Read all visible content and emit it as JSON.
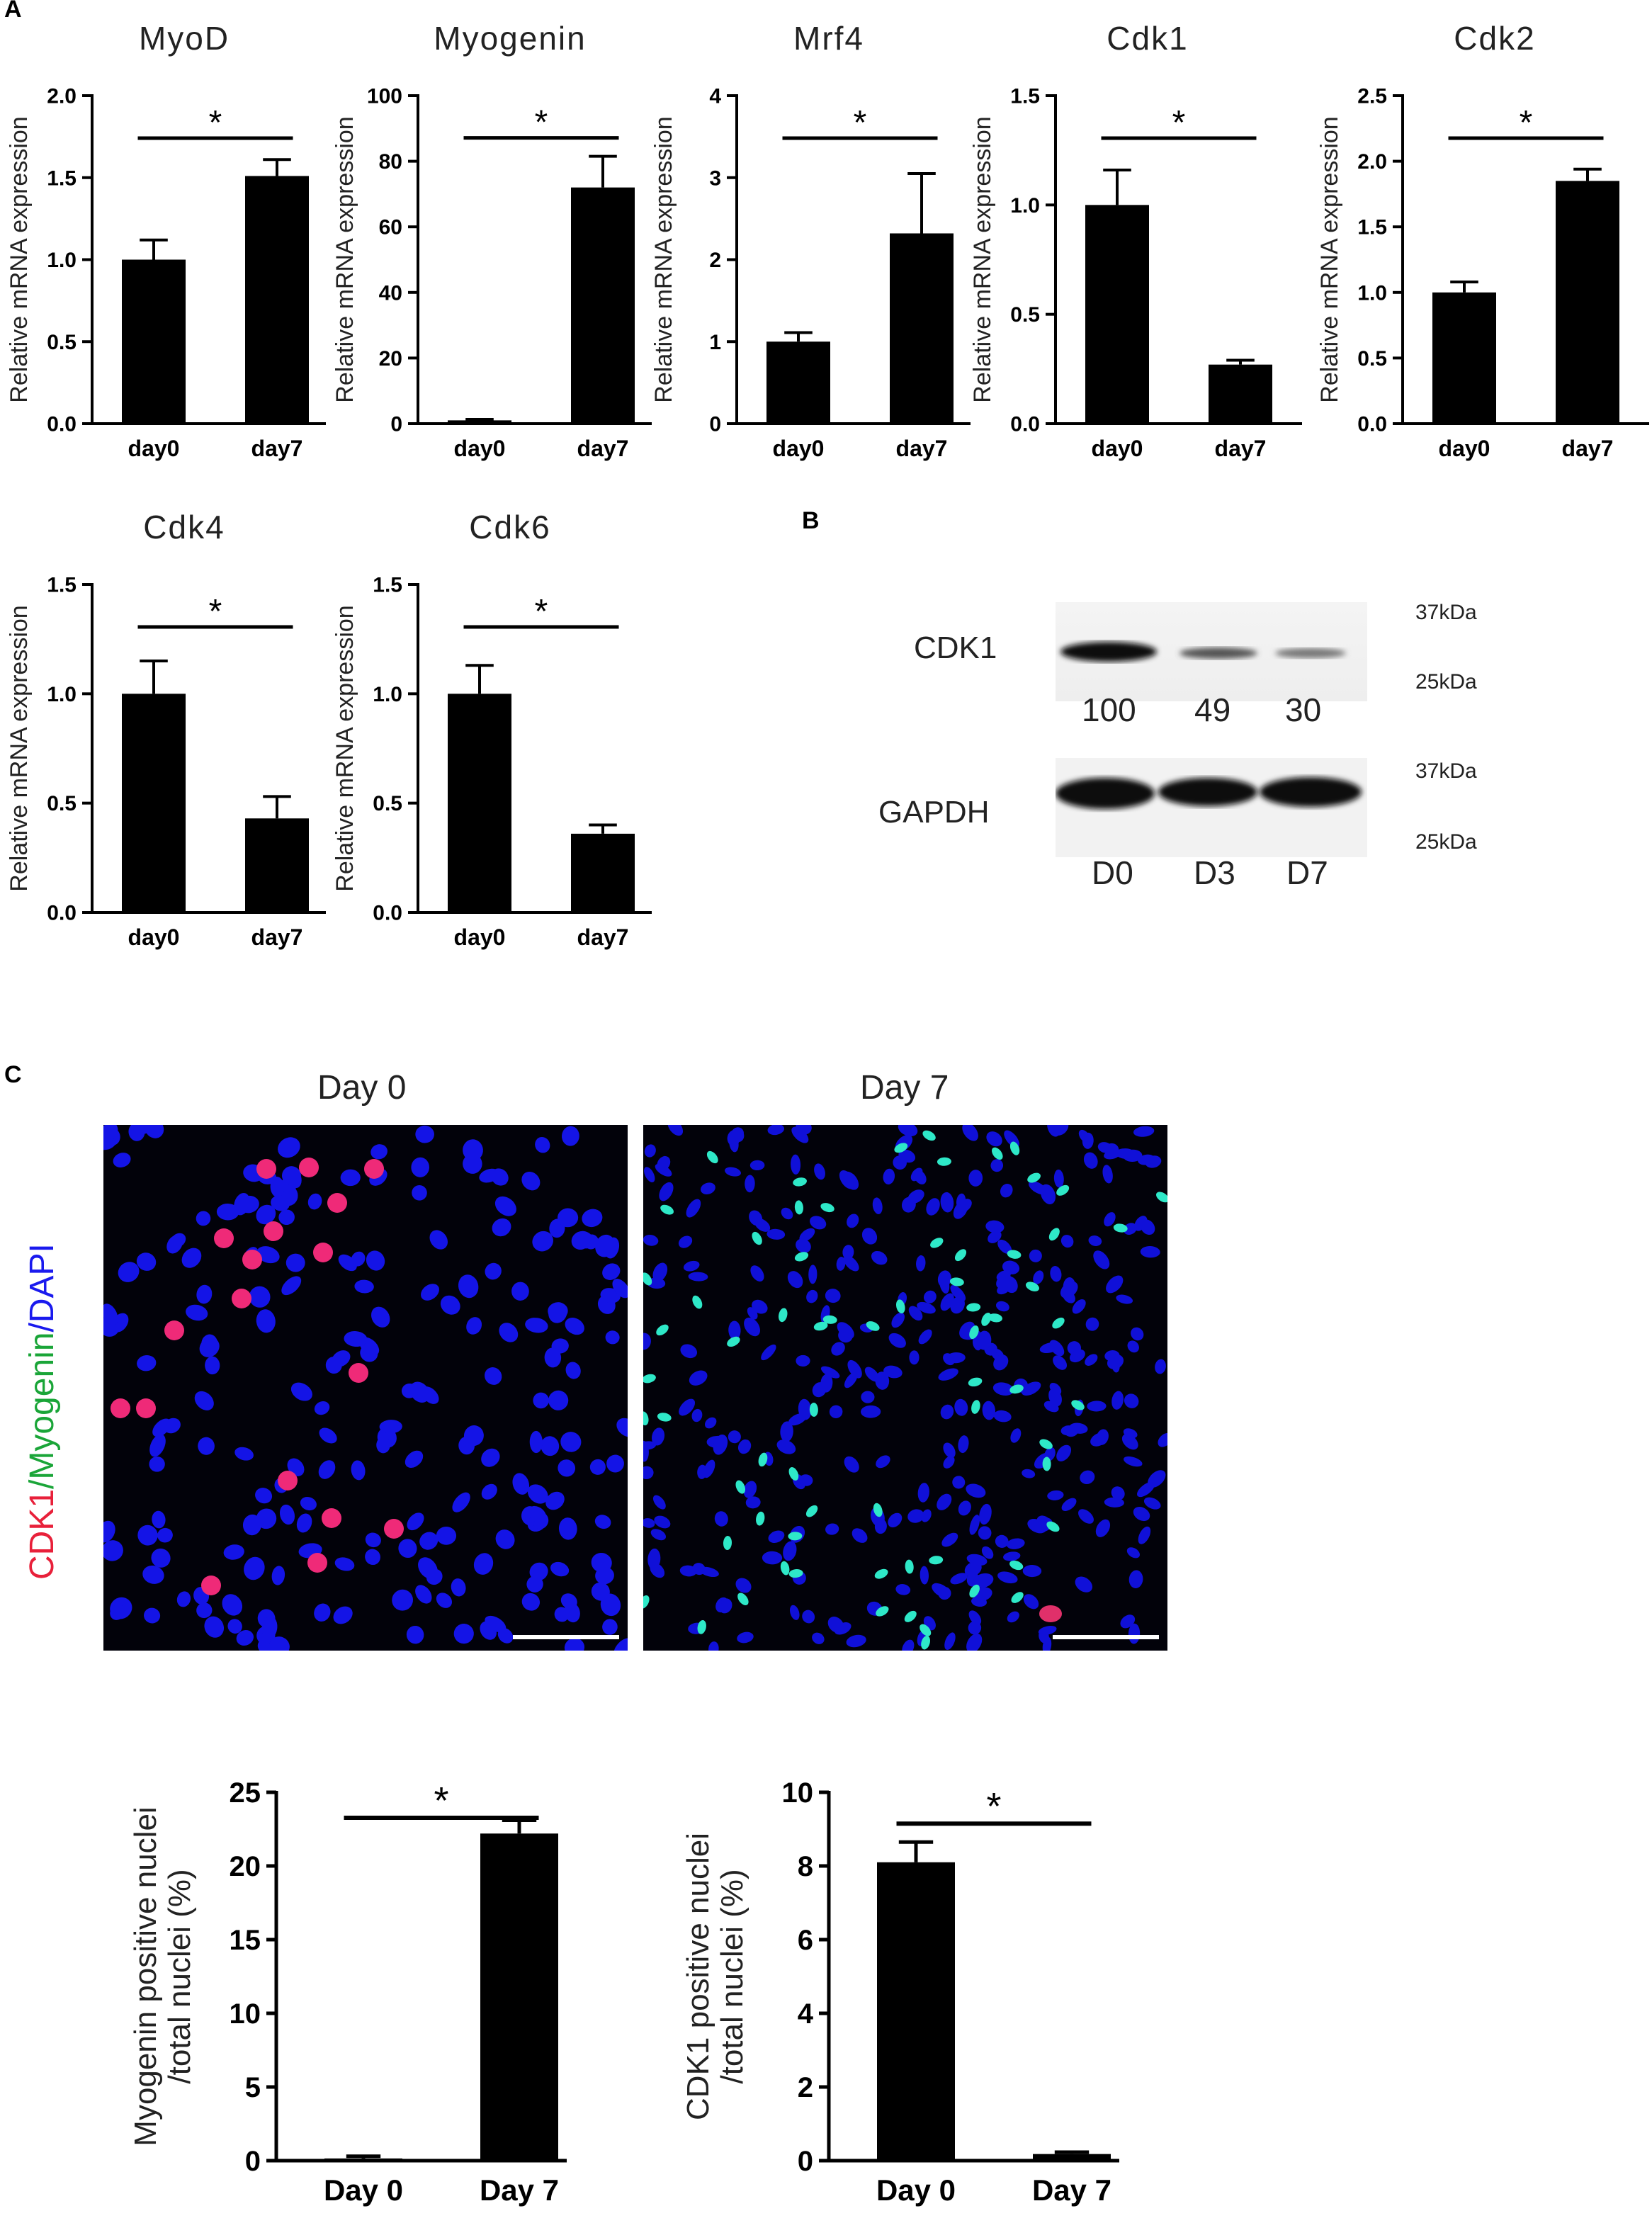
{
  "panels": {
    "a": "A",
    "b": "B",
    "c": "C"
  },
  "chart_data": [
    {
      "id": "c1",
      "type": "bar",
      "title": "MyoD",
      "ylabel": "Relative mRNA expression",
      "categories": [
        "day0",
        "day7"
      ],
      "values": [
        1.0,
        1.51
      ],
      "errors": [
        0.12,
        0.1
      ],
      "ylim": [
        0,
        2.0
      ],
      "yticks": [
        "0.0",
        "0.5",
        "1.0",
        "1.5",
        "2.0"
      ],
      "ytick_values": [
        0,
        0.5,
        1.0,
        1.5,
        2.0
      ],
      "significance": "*"
    },
    {
      "id": "c2",
      "type": "bar",
      "title": "Myogenin",
      "ylabel": "Relative mRNA expression",
      "categories": [
        "day0",
        "day7"
      ],
      "values": [
        1.0,
        72.0
      ],
      "errors": [
        0.3,
        9.5
      ],
      "ylim": [
        0,
        100
      ],
      "yticks": [
        "0",
        "20",
        "40",
        "60",
        "80",
        "100"
      ],
      "ytick_values": [
        0,
        20,
        40,
        60,
        80,
        100
      ],
      "significance": "*"
    },
    {
      "id": "c3",
      "type": "bar",
      "title": "Mrf4",
      "ylabel": "Relative mRNA expression",
      "categories": [
        "day0",
        "day7"
      ],
      "values": [
        1.0,
        2.32
      ],
      "errors": [
        0.11,
        0.73
      ],
      "ylim": [
        0,
        4
      ],
      "yticks": [
        "0",
        "1",
        "2",
        "3",
        "4"
      ],
      "ytick_values": [
        0,
        1,
        2,
        3,
        4
      ],
      "significance": "*"
    },
    {
      "id": "c4",
      "type": "bar",
      "title": "Cdk1",
      "ylabel": "Relative mRNA expression",
      "categories": [
        "day0",
        "day7"
      ],
      "values": [
        1.0,
        0.27
      ],
      "errors": [
        0.16,
        0.02
      ],
      "ylim": [
        0,
        1.5
      ],
      "yticks": [
        "0.0",
        "0.5",
        "1.0",
        "1.5"
      ],
      "ytick_values": [
        0,
        0.5,
        1.0,
        1.5
      ],
      "significance": "*"
    },
    {
      "id": "c5",
      "type": "bar",
      "title": "Cdk2",
      "ylabel": "Relative mRNA expression",
      "categories": [
        "day0",
        "day7"
      ],
      "values": [
        1.0,
        1.85
      ],
      "errors": [
        0.08,
        0.09
      ],
      "ylim": [
        0,
        2.5
      ],
      "yticks": [
        "0.0",
        "0.5",
        "1.0",
        "1.5",
        "2.0",
        "2.5"
      ],
      "ytick_values": [
        0,
        0.5,
        1.0,
        1.5,
        2.0,
        2.5
      ],
      "significance": "*"
    },
    {
      "id": "c6",
      "type": "bar",
      "title": "Cdk4",
      "ylabel": "Relative mRNA expression",
      "categories": [
        "day0",
        "day7"
      ],
      "values": [
        1.0,
        0.43
      ],
      "errors": [
        0.15,
        0.1
      ],
      "ylim": [
        0,
        1.5
      ],
      "yticks": [
        "0.0",
        "0.5",
        "1.0",
        "1.5"
      ],
      "ytick_values": [
        0,
        0.5,
        1.0,
        1.5
      ],
      "significance": "*"
    },
    {
      "id": "c7",
      "type": "bar",
      "title": "Cdk6",
      "ylabel": "Relative mRNA expression",
      "categories": [
        "day0",
        "day7"
      ],
      "values": [
        1.0,
        0.36
      ],
      "errors": [
        0.13,
        0.04
      ],
      "ylim": [
        0,
        1.5
      ],
      "yticks": [
        "0.0",
        "0.5",
        "1.0",
        "1.5"
      ],
      "ytick_values": [
        0,
        0.5,
        1.0,
        1.5
      ],
      "significance": "*"
    },
    {
      "id": "c8",
      "type": "bar",
      "title": "",
      "ylabel": "Myogenin positive nuclei\n/total nuclei (%)",
      "categories": [
        "Day 0",
        "Day 7"
      ],
      "values": [
        0.15,
        22.2
      ],
      "errors": [
        0.15,
        0.9
      ],
      "ylim": [
        0,
        25
      ],
      "yticks": [
        "0",
        "5",
        "10",
        "15",
        "20",
        "25"
      ],
      "ytick_values": [
        0,
        5,
        10,
        15,
        20,
        25
      ],
      "significance": "*"
    },
    {
      "id": "c9",
      "type": "bar",
      "title": "",
      "ylabel": "CDK1 positive nuclei\n/total nuclei (%)",
      "categories": [
        "Day 0",
        "Day 7"
      ],
      "values": [
        8.1,
        0.18
      ],
      "errors": [
        0.55,
        0.05
      ],
      "ylim": [
        0,
        10
      ],
      "yticks": [
        "0",
        "2",
        "4",
        "6",
        "8",
        "10"
      ],
      "ytick_values": [
        0,
        2,
        4,
        6,
        8,
        10
      ],
      "significance": "*"
    }
  ],
  "western": {
    "cdk1_label": "CDK1",
    "gapdh_label": "GAPDH",
    "kda_top": "37kDa",
    "kda_bottom": "25kDa",
    "densitometry": [
      "100",
      "49",
      "30"
    ],
    "lanes": [
      "D0",
      "D3",
      "D7"
    ]
  },
  "micrographs": {
    "day0_title": "Day 0",
    "day7_title": "Day 7",
    "stain_label": {
      "cdk1": "CDK1",
      "myogenin": "/Myogenin",
      "dapi": "/DAPI"
    },
    "colors": {
      "cdk1": "#e8203a",
      "myogenin": "#1aa538",
      "dapi": "#1a1aee"
    }
  }
}
